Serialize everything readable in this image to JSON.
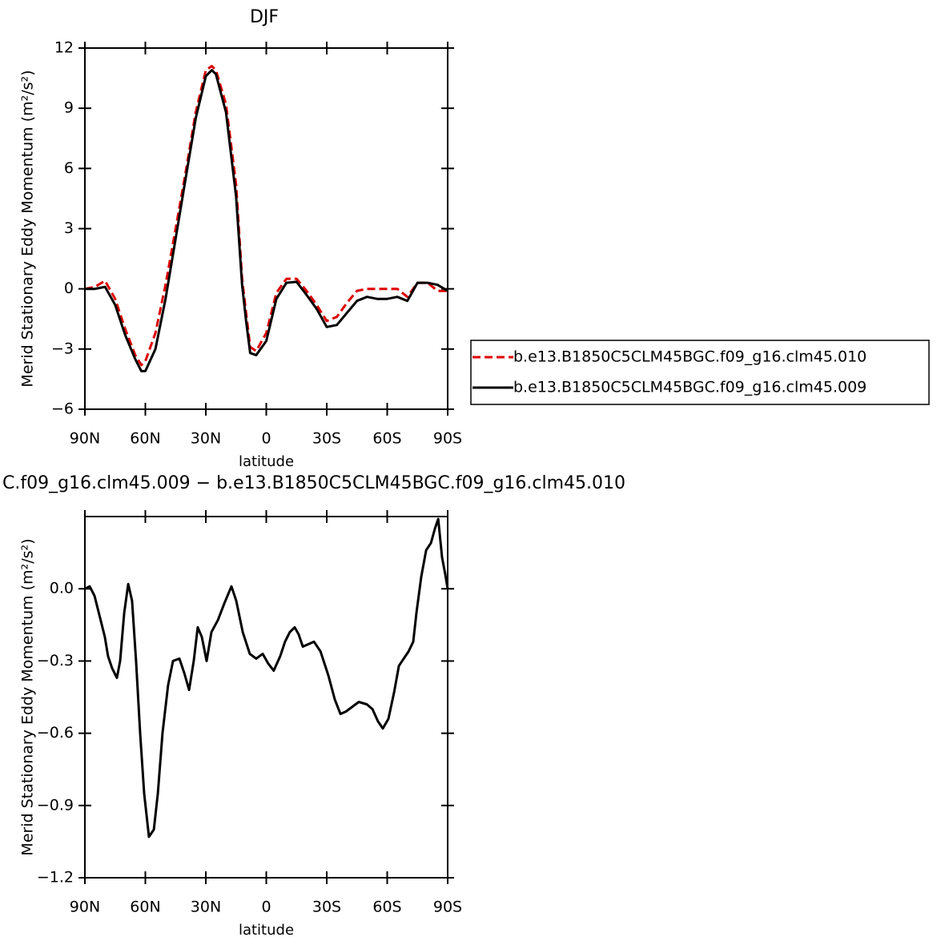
{
  "chart_data": [
    {
      "type": "line",
      "title": "DJF",
      "xlabel": "latitude",
      "ylabel": "Merid Stationary Eddy Momentum (m²/s²)",
      "x": [
        90,
        85,
        80,
        75,
        70,
        65,
        62,
        60,
        55,
        50,
        45,
        40,
        35,
        30,
        27,
        25,
        20,
        15,
        12,
        10,
        8,
        5,
        0,
        -5,
        -10,
        -15,
        -20,
        -25,
        -30,
        -35,
        -40,
        -45,
        -50,
        -55,
        -60,
        -65,
        -70,
        -75,
        -80,
        -85,
        -90
      ],
      "series": [
        {
          "name": "b.e13.B1850C5CLM45BGC.f09_g16.clm45.010",
          "color": "#dd0000",
          "line_style": "dashed",
          "values": [
            0,
            0.1,
            0.4,
            -0.5,
            -2.0,
            -3.3,
            -3.8,
            -3.6,
            -2.2,
            0.2,
            3.0,
            5.8,
            8.8,
            10.9,
            11.1,
            10.9,
            9.2,
            5.2,
            0.5,
            -1.2,
            -2.9,
            -3.1,
            -2.2,
            -0.2,
            0.5,
            0.5,
            -0.1,
            -0.8,
            -1.6,
            -1.4,
            -0.7,
            -0.1,
            0.0,
            0.0,
            0.0,
            0.0,
            -0.4,
            0.3,
            0.3,
            -0.1,
            -0.1
          ]
        },
        {
          "name": "b.e13.B1850C5CLM45BGC.f09_g16.clm45.009",
          "color": "#000000",
          "line_style": "solid",
          "values": [
            0,
            0,
            0.1,
            -0.8,
            -2.3,
            -3.5,
            -4.1,
            -4.1,
            -3.0,
            -0.5,
            2.5,
            5.5,
            8.5,
            10.6,
            10.9,
            10.7,
            8.8,
            4.6,
            0.2,
            -1.6,
            -3.2,
            -3.3,
            -2.6,
            -0.5,
            0.3,
            0.35,
            -0.3,
            -1.0,
            -1.9,
            -1.8,
            -1.2,
            -0.6,
            -0.4,
            -0.5,
            -0.5,
            -0.4,
            -0.6,
            0.3,
            0.3,
            0.2,
            -0.1
          ]
        }
      ],
      "xlim": [
        90,
        -90
      ],
      "xticks": [
        {
          "value": 90,
          "label": "90N"
        },
        {
          "value": 60,
          "label": "60N"
        },
        {
          "value": 30,
          "label": "30N"
        },
        0,
        {
          "value": -30,
          "label": "30S"
        },
        {
          "value": -60,
          "label": "60S"
        },
        {
          "value": -90,
          "label": "90S"
        }
      ],
      "ylim": [
        -6,
        12
      ],
      "yticks": [
        {
          "value": -6,
          "label": "−6"
        },
        {
          "value": -3,
          "label": "−3"
        },
        0,
        3,
        6,
        9,
        12
      ],
      "legend": "right"
    },
    {
      "type": "line",
      "title": "C.f09_g16.clm45.009 − b.e13.B1850C5CLM45BGC.f09_g16.clm45.010",
      "xlabel": "latitude",
      "ylabel": "Merid Stationary Eddy Momentum (m²/s²)",
      "x": [
        90,
        87.6,
        85.2,
        80.1,
        78.5,
        76.5,
        74.1,
        72.5,
        70.5,
        68.5,
        66.6,
        64.6,
        62.6,
        60.6,
        58.2,
        55.8,
        53.8,
        51.5,
        48.7,
        46.3,
        43.1,
        40.7,
        38.3,
        36.0,
        34.0,
        32.0,
        29.6,
        27.2,
        24.0,
        20.8,
        17.3,
        14.9,
        11.7,
        8.2,
        5.0,
        1.8,
        -0.9,
        -3.7,
        -6.9,
        -9.3,
        -11.7,
        -14.1,
        -16.1,
        -18.1,
        -20.9,
        -23.7,
        -26.9,
        -30.8,
        -34.0,
        -36.8,
        -39.5,
        -42.7,
        -45.9,
        -49.9,
        -52.7,
        -55.4,
        -57.8,
        -60.6,
        -63.4,
        -65.8,
        -68.2,
        -70.6,
        -72.9,
        -74.5,
        -76.9,
        -79.3,
        -81.7,
        -83.7,
        -85.3,
        -87.2,
        -88.8,
        -90
      ],
      "values": [
        0,
        0.01,
        -0.03,
        -0.2,
        -0.28,
        -0.33,
        -0.37,
        -0.3,
        -0.1,
        0.02,
        -0.05,
        -0.3,
        -0.6,
        -0.85,
        -1.03,
        -1.0,
        -0.85,
        -0.6,
        -0.4,
        -0.3,
        -0.29,
        -0.35,
        -0.42,
        -0.3,
        -0.16,
        -0.2,
        -0.3,
        -0.18,
        -0.13,
        -0.06,
        0.01,
        -0.05,
        -0.18,
        -0.27,
        -0.29,
        -0.27,
        -0.31,
        -0.34,
        -0.28,
        -0.22,
        -0.18,
        -0.16,
        -0.19,
        -0.24,
        -0.23,
        -0.22,
        -0.26,
        -0.36,
        -0.46,
        -0.52,
        -0.51,
        -0.49,
        -0.47,
        -0.48,
        -0.5,
        -0.55,
        -0.58,
        -0.54,
        -0.43,
        -0.32,
        -0.29,
        -0.26,
        -0.22,
        -0.1,
        0.05,
        0.16,
        0.19,
        0.25,
        0.29,
        0.13,
        0.06,
        0.0
      ],
      "color": "#000000",
      "xlim": [
        90,
        -90
      ],
      "xticks": [
        {
          "value": 90,
          "label": "90N"
        },
        {
          "value": 60,
          "label": "60N"
        },
        {
          "value": 30,
          "label": "30N"
        },
        0,
        {
          "value": -30,
          "label": "30S"
        },
        {
          "value": -60,
          "label": "60S"
        },
        {
          "value": -90,
          "label": "90S"
        }
      ],
      "ylim": [
        -1.2,
        0.3
      ],
      "yticks": [
        {
          "value": -1.2,
          "label": "−1.2"
        },
        {
          "value": -0.9,
          "label": "−0.9"
        },
        {
          "value": -0.6,
          "label": "−0.6"
        },
        {
          "value": -0.3,
          "label": "−0.3"
        },
        {
          "value": 0,
          "label": "0.0"
        }
      ]
    }
  ]
}
